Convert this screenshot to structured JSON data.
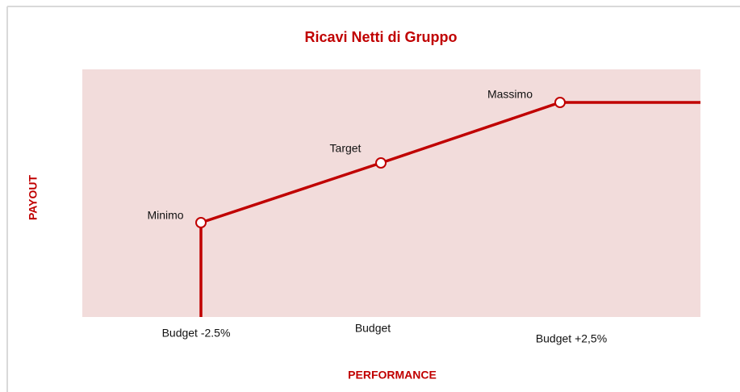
{
  "title": "Ricavi Netti di Gruppo",
  "y_label": "PAYOUT",
  "x_label": "PERFORMANCE",
  "points": [
    {
      "label": "Minimo"
    },
    {
      "label": "Target"
    },
    {
      "label": "Massimo"
    }
  ],
  "x_labels": [
    "Budget -2.5%",
    "Budget",
    "Budget +2,5%"
  ]
}
